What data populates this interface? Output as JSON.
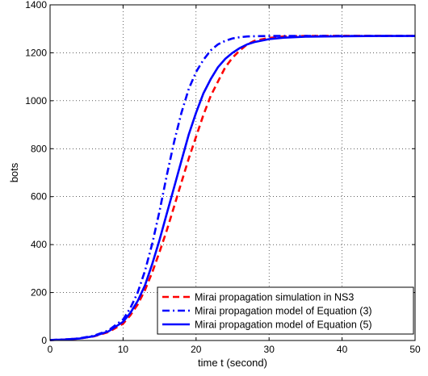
{
  "chart_data": {
    "type": "line",
    "xlabel": "time t (second)",
    "ylabel": "bots",
    "xlim": [
      0,
      50
    ],
    "ylim": [
      0,
      1400
    ],
    "xticks": [
      0,
      10,
      20,
      30,
      40,
      50
    ],
    "yticks": [
      0,
      200,
      400,
      600,
      800,
      1000,
      1200,
      1400
    ],
    "grid": true,
    "legend_position": "bottom-right",
    "series": [
      {
        "name": "Mirai propagation simulation in NS3",
        "color": "#ff0000",
        "style": "dashed",
        "x": [
          0,
          2,
          4,
          6,
          8,
          10,
          11,
          12,
          13,
          14,
          15,
          16,
          17,
          18,
          19,
          20,
          21,
          22,
          23,
          24,
          25,
          26,
          27,
          28,
          30,
          32,
          35,
          40,
          45,
          50
        ],
        "y": [
          2,
          4,
          8,
          17,
          35,
          70,
          105,
          150,
          210,
          285,
          370,
          460,
          560,
          660,
          760,
          850,
          940,
          1020,
          1080,
          1140,
          1180,
          1210,
          1235,
          1250,
          1262,
          1268,
          1270,
          1271,
          1271,
          1271
        ]
      },
      {
        "name": "Mirai propagation model of Equation (3)",
        "color": "#0000ff",
        "style": "dashdot",
        "x": [
          0,
          2,
          4,
          6,
          8,
          10,
          11,
          12,
          13,
          14,
          15,
          16,
          17,
          18,
          19,
          20,
          21,
          22,
          23,
          24,
          25,
          26,
          27,
          28,
          30,
          32,
          35,
          40,
          45,
          50
        ],
        "y": [
          2,
          4,
          9,
          20,
          42,
          88,
          135,
          200,
          290,
          405,
          540,
          690,
          830,
          950,
          1050,
          1120,
          1170,
          1210,
          1235,
          1250,
          1260,
          1265,
          1268,
          1269,
          1270,
          1270,
          1270,
          1270,
          1270,
          1270
        ]
      },
      {
        "name": "Mirai propagation model of Equation (5)",
        "color": "#0000ff",
        "style": "solid",
        "x": [
          0,
          2,
          4,
          6,
          8,
          10,
          11,
          12,
          13,
          14,
          15,
          16,
          17,
          18,
          19,
          20,
          21,
          22,
          23,
          24,
          25,
          26,
          27,
          28,
          30,
          32,
          35,
          40,
          45,
          50
        ],
        "y": [
          2,
          4,
          8,
          18,
          38,
          78,
          115,
          165,
          230,
          320,
          420,
          530,
          640,
          750,
          860,
          950,
          1030,
          1090,
          1140,
          1175,
          1200,
          1220,
          1235,
          1245,
          1257,
          1263,
          1267,
          1269,
          1270,
          1270
        ]
      }
    ]
  }
}
